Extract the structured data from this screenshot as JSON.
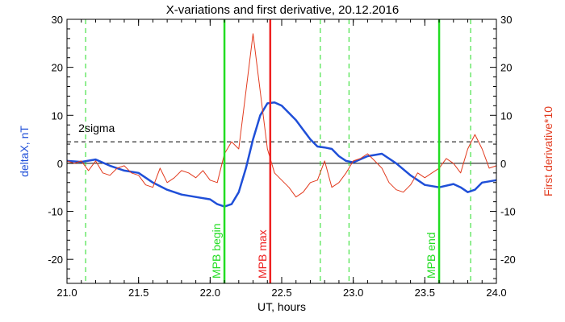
{
  "chart_data": {
    "type": "line",
    "title": "X-variations and first derivative, 20.12.2016",
    "xlabel": "UT, hours",
    "ylabel_left": "deltaX, nT",
    "ylabel_right": "First derivative*10",
    "xlim": [
      21.0,
      24.0
    ],
    "ylim_left": [
      -25,
      30
    ],
    "ylim_right": [
      -25,
      30
    ],
    "x_ticks": [
      "21.0",
      "21.5",
      "22.0",
      "22.5",
      "23.0",
      "23.5",
      "24.0"
    ],
    "y_ticks": [
      "-20",
      "-10",
      "0",
      "10",
      "20",
      "30"
    ],
    "threshold": {
      "label": "2sigma",
      "value": 4.5
    },
    "colors": {
      "deltaX": "#1f4fd8",
      "derivative": "#e23a1e",
      "markers": "#22dd22",
      "max_marker": "#ee2222"
    },
    "markers": [
      {
        "label": "MPB begin",
        "x": 22.1,
        "color": "green"
      },
      {
        "label": "MPB max",
        "x": 22.42,
        "color": "red"
      },
      {
        "label": "MPB end",
        "x": 23.6,
        "color": "green"
      }
    ],
    "dashed_lines": [
      21.13,
      22.77,
      22.97,
      23.82
    ],
    "series": [
      {
        "name": "deltaX",
        "x": [
          21.0,
          21.1,
          21.2,
          21.3,
          21.4,
          21.5,
          21.6,
          21.7,
          21.8,
          21.9,
          22.0,
          22.05,
          22.1,
          22.15,
          22.2,
          22.25,
          22.3,
          22.35,
          22.4,
          22.45,
          22.5,
          22.55,
          22.6,
          22.65,
          22.7,
          22.75,
          22.8,
          22.85,
          22.9,
          22.95,
          23.0,
          23.1,
          23.2,
          23.3,
          23.4,
          23.5,
          23.6,
          23.7,
          23.75,
          23.8,
          23.85,
          23.9,
          24.0
        ],
        "y": [
          0.5,
          0.3,
          0.8,
          -0.5,
          -1.5,
          -2.0,
          -4.0,
          -5.5,
          -6.5,
          -7.0,
          -7.5,
          -8.5,
          -9.0,
          -8.5,
          -6.0,
          -1.0,
          5.0,
          10.0,
          12.5,
          12.7,
          12.0,
          10.5,
          9.0,
          7.0,
          5.0,
          3.5,
          3.3,
          3.0,
          1.5,
          0.5,
          0.2,
          1.5,
          2.0,
          0.0,
          -2.5,
          -4.5,
          -5.0,
          -4.3,
          -5.0,
          -6.0,
          -5.5,
          -4.0,
          -3.5
        ]
      },
      {
        "name": "derivative",
        "x": [
          21.0,
          21.05,
          21.1,
          21.15,
          21.2,
          21.25,
          21.3,
          21.35,
          21.4,
          21.45,
          21.5,
          21.55,
          21.6,
          21.65,
          21.7,
          21.75,
          21.8,
          21.85,
          21.9,
          21.95,
          22.0,
          22.05,
          22.1,
          22.15,
          22.2,
          22.25,
          22.3,
          22.35,
          22.4,
          22.45,
          22.5,
          22.55,
          22.6,
          22.65,
          22.7,
          22.75,
          22.8,
          22.85,
          22.9,
          22.95,
          23.0,
          23.05,
          23.1,
          23.15,
          23.2,
          23.25,
          23.3,
          23.35,
          23.4,
          23.45,
          23.5,
          23.55,
          23.6,
          23.65,
          23.7,
          23.75,
          23.8,
          23.85,
          23.9,
          23.95,
          24.0
        ],
        "y": [
          0.5,
          0.0,
          0.5,
          -1.5,
          0.5,
          -2.0,
          -2.5,
          -1.0,
          -0.5,
          -2.0,
          -2.5,
          -4.5,
          -5.0,
          -1.0,
          -4.0,
          -3.0,
          -1.5,
          -2.0,
          -3.0,
          -1.5,
          -3.5,
          -4.0,
          2.0,
          4.5,
          3.0,
          15.0,
          27.0,
          15.0,
          3.0,
          -2.0,
          -3.5,
          -5.0,
          -7.0,
          -6.0,
          -4.0,
          -3.5,
          0.5,
          -5.0,
          -4.0,
          -2.0,
          0.5,
          1.0,
          2.0,
          0.5,
          -1.0,
          -4.0,
          -5.5,
          -6.0,
          -4.5,
          -2.0,
          -3.0,
          -2.0,
          -1.0,
          1.0,
          0.0,
          -2.0,
          3.0,
          6.0,
          3.0,
          -1.0,
          -0.5
        ]
      }
    ]
  }
}
